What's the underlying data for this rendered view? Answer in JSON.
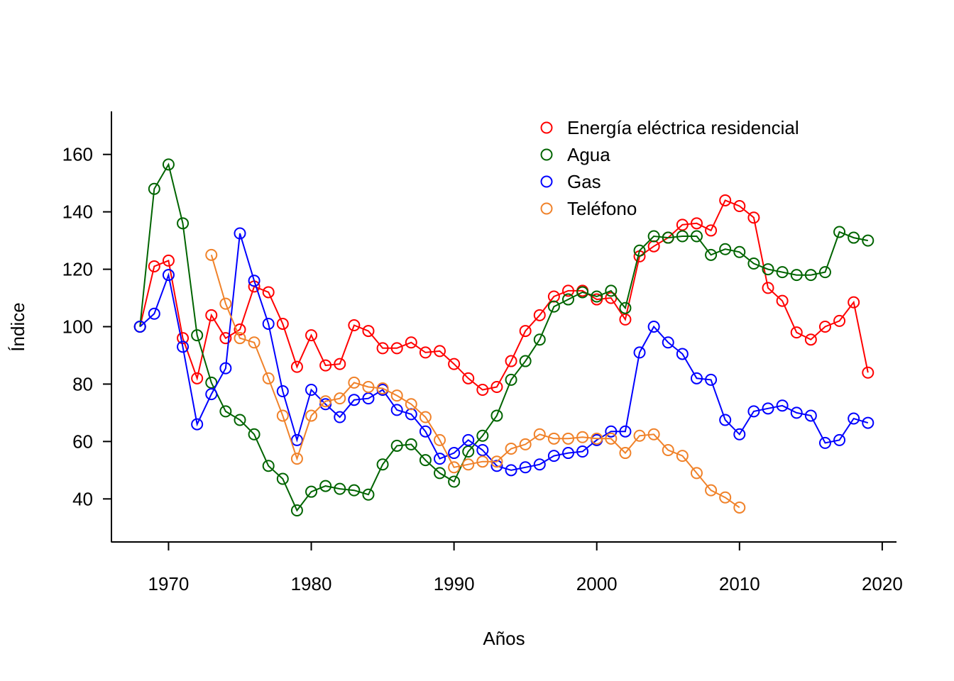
{
  "chart_data": {
    "type": "line",
    "title": "",
    "xlabel": "Años",
    "ylabel": "Índice",
    "xlim": [
      1966,
      2021
    ],
    "ylim": [
      25,
      175
    ],
    "xticks": [
      1970,
      1980,
      1990,
      2000,
      2010,
      2020
    ],
    "yticks": [
      40,
      60,
      80,
      100,
      120,
      140,
      160
    ],
    "grid": false,
    "legend_position": "top-right",
    "series": [
      {
        "name": "Energía eléctrica residencial",
        "color": "#ff0000",
        "x": [
          1968,
          1969,
          1970,
          1971,
          1972,
          1973,
          1974,
          1975,
          1976,
          1977,
          1978,
          1979,
          1980,
          1981,
          1982,
          1983,
          1984,
          1985,
          1986,
          1987,
          1988,
          1989,
          1990,
          1991,
          1992,
          1993,
          1994,
          1995,
          1996,
          1997,
          1998,
          1999,
          2000,
          2001,
          2002,
          2003,
          2004,
          2005,
          2006,
          2007,
          2008,
          2009,
          2010,
          2011,
          2012,
          2013,
          2014,
          2015,
          2016,
          2017,
          2018,
          2019
        ],
        "y": [
          100,
          121,
          123,
          96,
          82,
          104,
          96,
          99,
          114,
          112,
          101,
          86,
          97,
          86.5,
          87,
          100.5,
          98.5,
          92.5,
          92.5,
          94.5,
          91,
          91.5,
          87,
          82,
          78,
          79,
          88,
          98.5,
          104,
          110.5,
          112.5,
          112.5,
          109.5,
          110,
          102.5,
          124.5,
          128,
          131,
          135.5,
          136,
          133.5,
          144,
          142,
          138,
          113.5,
          109,
          98,
          95.5,
          100,
          102,
          108.5,
          84
        ]
      },
      {
        "name": "Agua",
        "color": "#006400",
        "x": [
          1968,
          1969,
          1970,
          1971,
          1972,
          1973,
          1974,
          1975,
          1976,
          1977,
          1978,
          1979,
          1980,
          1981,
          1982,
          1983,
          1984,
          1985,
          1986,
          1987,
          1988,
          1989,
          1990,
          1991,
          1992,
          1993,
          1994,
          1995,
          1996,
          1997,
          1998,
          1999,
          2000,
          2001,
          2002,
          2003,
          2004,
          2005,
          2006,
          2007,
          2008,
          2009,
          2010,
          2011,
          2012,
          2013,
          2014,
          2015,
          2016,
          2017,
          2018,
          2019
        ],
        "y": [
          100,
          148,
          156.5,
          136,
          97,
          80.5,
          70.5,
          67.5,
          62.5,
          51.5,
          47,
          36,
          42.5,
          44.5,
          43.5,
          43,
          41.5,
          52,
          58.5,
          59,
          53.5,
          49,
          46,
          56.5,
          62,
          69,
          81.5,
          88,
          95.5,
          107,
          109.5,
          112,
          110.5,
          112.5,
          106.5,
          126.5,
          131.5,
          131,
          131.5,
          131.5,
          125,
          127,
          126,
          122,
          120,
          119,
          118,
          118,
          119,
          133,
          131,
          130
        ]
      },
      {
        "name": "Gas",
        "color": "#0000ff",
        "x": [
          1968,
          1969,
          1970,
          1971,
          1972,
          1973,
          1974,
          1975,
          1976,
          1977,
          1978,
          1979,
          1980,
          1981,
          1982,
          1983,
          1984,
          1985,
          1986,
          1987,
          1988,
          1989,
          1990,
          1991,
          1992,
          1993,
          1994,
          1995,
          1996,
          1997,
          1998,
          1999,
          2000,
          2001,
          2002,
          2003,
          2004,
          2005,
          2006,
          2007,
          2008,
          2009,
          2010,
          2011,
          2012,
          2013,
          2014,
          2015,
          2016,
          2017,
          2018,
          2019
        ],
        "y": [
          100,
          104.5,
          118,
          93,
          66,
          76.5,
          85.5,
          132.5,
          116,
          101,
          77.5,
          60.5,
          78,
          73,
          68.5,
          74.5,
          75,
          78,
          71,
          69.5,
          63.5,
          54,
          56,
          60.5,
          57,
          51.5,
          50,
          51,
          52,
          55,
          56,
          56.5,
          60.5,
          63.5,
          63.5,
          91,
          100,
          94.5,
          90.5,
          82,
          81.5,
          67.5,
          62.5,
          70.5,
          71.5,
          72.5,
          70,
          69,
          59.5,
          60.5,
          68,
          66.5
        ]
      },
      {
        "name": "Teléfono",
        "color": "#f0822a",
        "x": [
          1973,
          1974,
          1975,
          1976,
          1977,
          1978,
          1979,
          1980,
          1981,
          1982,
          1983,
          1984,
          1985,
          1986,
          1987,
          1988,
          1989,
          1990,
          1991,
          1992,
          1993,
          1994,
          1995,
          1996,
          1997,
          1998,
          1999,
          2000,
          2001,
          2002,
          2003,
          2004,
          2005,
          2006,
          2007,
          2008,
          2009,
          2010
        ],
        "y": [
          125,
          108,
          96,
          94.5,
          82,
          69,
          54,
          69,
          74,
          75,
          80.5,
          79,
          78.5,
          76,
          73,
          68.5,
          60.5,
          51,
          52,
          53,
          53,
          57.5,
          59,
          62.5,
          61,
          61,
          61.5,
          61,
          61,
          56,
          62,
          62.5,
          57,
          55,
          49,
          43,
          40.5,
          37
        ]
      }
    ]
  }
}
